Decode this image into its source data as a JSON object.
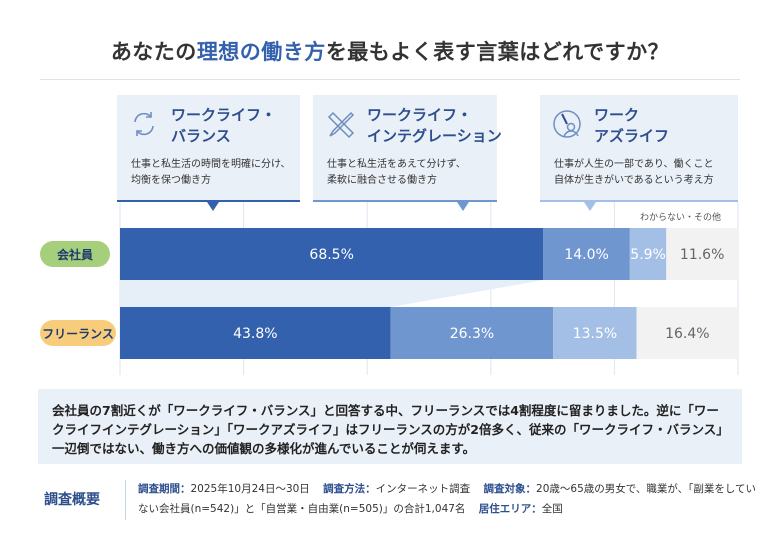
{
  "title": {
    "pre": "あなたの",
    "highlight": "理想の働き方",
    "post": "を最もよく表す言葉はどれですか？"
  },
  "cards": [
    {
      "name": "ワークライフ・\nバランス",
      "desc": "仕事と私生活の時間を明確に分け、\n均衡を保つ働き方",
      "icon": "cycle-arrows-icon",
      "color": "#3461ad"
    },
    {
      "name": "ワークライフ・\nインテグレーション",
      "desc": "仕事と私生活をあえて分けず、\n柔軟に融合させる働き方",
      "icon": "pencil-ruler-icon",
      "color": "#6f96cf"
    },
    {
      "name": "ワーク\nアズライフ",
      "desc": "仕事が人生の一部であり、働くこと\n自体が生きがいであるという考え方",
      "icon": "clock-person-icon",
      "color": "#a4bfe6"
    }
  ],
  "chart_data": {
    "type": "bar",
    "stacked": true,
    "orientation": "horizontal",
    "categories": [
      "会社員",
      "フリーランス"
    ],
    "series": [
      {
        "name": "ワークライフ・バランス",
        "values": [
          68.5,
          43.8
        ],
        "color": "#3461ad"
      },
      {
        "name": "ワークライフ・インテグレーション",
        "values": [
          14.0,
          26.3
        ],
        "color": "#6f96cf"
      },
      {
        "name": "ワークアズライフ",
        "values": [
          5.9,
          13.5
        ],
        "color": "#a4bfe6"
      },
      {
        "name": "わからない・その他",
        "values": [
          11.6,
          16.4
        ],
        "color": "#f2f2f2"
      }
    ],
    "labels": [
      [
        "68.5%",
        "14.0%",
        "5.9%",
        "11.6%"
      ],
      [
        "43.8%",
        "26.3%",
        "13.5%",
        "16.4%"
      ]
    ],
    "xlim": [
      0,
      100
    ],
    "grid": true,
    "category_colors": [
      "#a5cf7a",
      "#f7cd7b"
    ]
  },
  "other_label": "わからない・その他",
  "summary": "会社員の7割近くが「ワークライフ・バランス」と回答する中、フリーランスでは4割程度に留まりました。逆に「ワークライフインテグレーション」「ワークアズライフ」はフリーランスの方が2倍多く、従来の「ワークライフ・バランス」一辺倒ではない、働き方への価値観の多様化が進んでいることが伺えます。",
  "survey": {
    "heading": "調査概要",
    "period_label": "調査期間：",
    "period": "2025年10月24日〜30日",
    "method_label": "調査方法：",
    "method": "インターネット調査",
    "target_label": "調査対象：",
    "target": "20歳〜65歳の男女で、職業が、「副業をしていない会社員(n=542)」と「自営業・自由業(n=505)」の合計1,047名",
    "area_label": "居住エリア：",
    "area": "全国"
  }
}
